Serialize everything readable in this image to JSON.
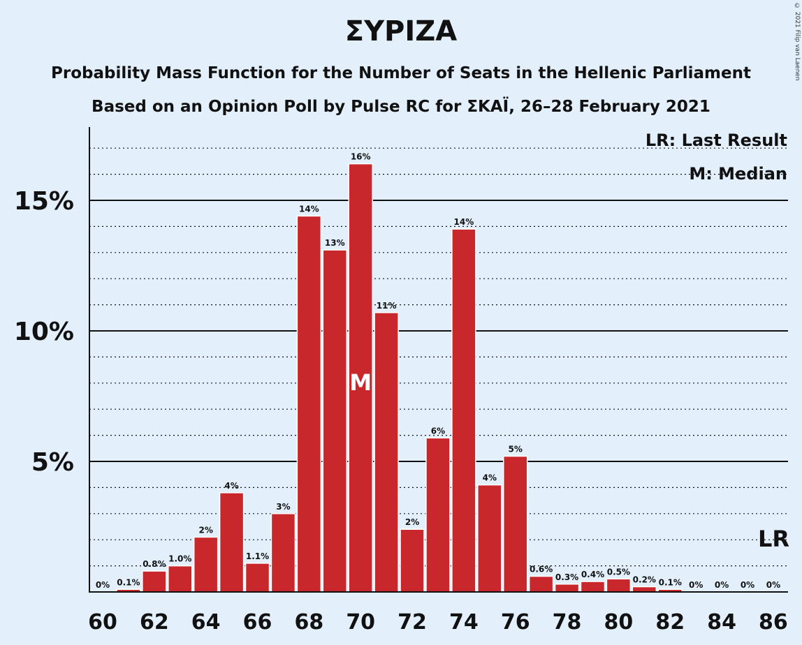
{
  "chart_data": {
    "type": "bar",
    "title": "ΣΥΡΙΖΑ",
    "subtitle_1": "Probability Mass Function for the Number of Seats in the Hellenic Parliament",
    "subtitle_2": "Based on an Opinion Poll by Pulse RC for ΣΚΑΪ, 26–28 February 2021",
    "copyright": "© 2021 Filip van Laenen",
    "x": [
      60,
      61,
      62,
      63,
      64,
      65,
      66,
      67,
      68,
      69,
      70,
      71,
      72,
      73,
      74,
      75,
      76,
      77,
      78,
      79,
      80,
      81,
      82,
      83,
      84,
      85,
      86
    ],
    "values": [
      0,
      0.1,
      0.8,
      1.0,
      2.1,
      3.8,
      1.1,
      3.0,
      14.4,
      13.1,
      16.4,
      10.7,
      2.4,
      5.9,
      13.9,
      4.1,
      5.2,
      0.6,
      0.3,
      0.4,
      0.5,
      0.2,
      0.1,
      0,
      0,
      0,
      0
    ],
    "labels": [
      "0%",
      "0.1%",
      "0.8%",
      "1.0%",
      "2%",
      "4%",
      "1.1%",
      "3%",
      "14%",
      "13%",
      "16%",
      "11%",
      "2%",
      "6%",
      "14%",
      "4%",
      "5%",
      "0.6%",
      "0.3%",
      "0.4%",
      "0.5%",
      "0.2%",
      "0.1%",
      "0%",
      "0%",
      "0%",
      "0%"
    ],
    "x_tick_labels": [
      "60",
      "62",
      "64",
      "66",
      "68",
      "70",
      "72",
      "74",
      "76",
      "78",
      "80",
      "82",
      "84",
      "86"
    ],
    "y_ticks": [
      5,
      10,
      15
    ],
    "y_tick_labels": [
      "5%",
      "10%",
      "15%"
    ],
    "ylim": [
      0,
      17.8
    ],
    "median_seats": 70,
    "median_marker": "M",
    "last_result_seats": 86,
    "last_result_marker": "LR",
    "legend": [
      "LR: Last Result",
      "M: Median"
    ],
    "bar_color": "#c8282c",
    "grid": "dotted every 1%, solid every 5%"
  }
}
